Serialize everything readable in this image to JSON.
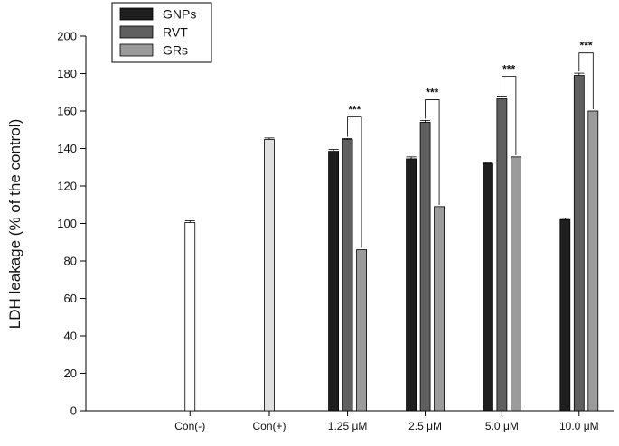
{
  "chart_data": {
    "type": "bar",
    "title": "",
    "xlabel": "",
    "ylabel": "LDH leakage (% of the control)",
    "ylim": [
      0,
      200
    ],
    "yticks": [
      0,
      20,
      40,
      60,
      80,
      100,
      120,
      140,
      160,
      180,
      200
    ],
    "grid": false,
    "legend_position": "top-left",
    "categories": [
      "Con(-)",
      "Con(+)",
      "1.25 μM",
      "2.5 μM",
      "5.0 μM",
      "10.0 μM"
    ],
    "controls": [
      {
        "category": "Con(-)",
        "value": 100.5,
        "error": 1,
        "color": "#ffffff"
      },
      {
        "category": "Con(+)",
        "value": 144.8,
        "error": 0.8,
        "color": "#e0e0e0"
      }
    ],
    "series": [
      {
        "name": "GNPs",
        "color": "#1e1e1e",
        "values": [
          null,
          null,
          138.5,
          134.5,
          132.0,
          102.0
        ],
        "errors": [
          null,
          null,
          1.0,
          1.0,
          0.7,
          0.7
        ]
      },
      {
        "name": "RVT",
        "color": "#5f5f5f",
        "values": [
          null,
          null,
          144.8,
          154.0,
          166.5,
          179.0
        ],
        "errors": [
          null,
          null,
          0.5,
          1.0,
          1.5,
          1.2
        ]
      },
      {
        "name": "GRs",
        "color": "#9b9b9b",
        "values": [
          null,
          null,
          86.0,
          109.0,
          135.5,
          160.0
        ],
        "errors": [
          null,
          null,
          0,
          0,
          0,
          0
        ]
      }
    ],
    "annotations": [
      {
        "category": "1.25 μM",
        "between": [
          "RVT",
          "GRs"
        ],
        "text": "***"
      },
      {
        "category": "2.5 μM",
        "between": [
          "RVT",
          "GRs"
        ],
        "text": "***"
      },
      {
        "category": "5.0 μM",
        "between": [
          "RVT",
          "GRs"
        ],
        "text": "***"
      },
      {
        "category": "10.0 μM",
        "between": [
          "RVT",
          "GRs"
        ],
        "text": "***"
      }
    ]
  }
}
